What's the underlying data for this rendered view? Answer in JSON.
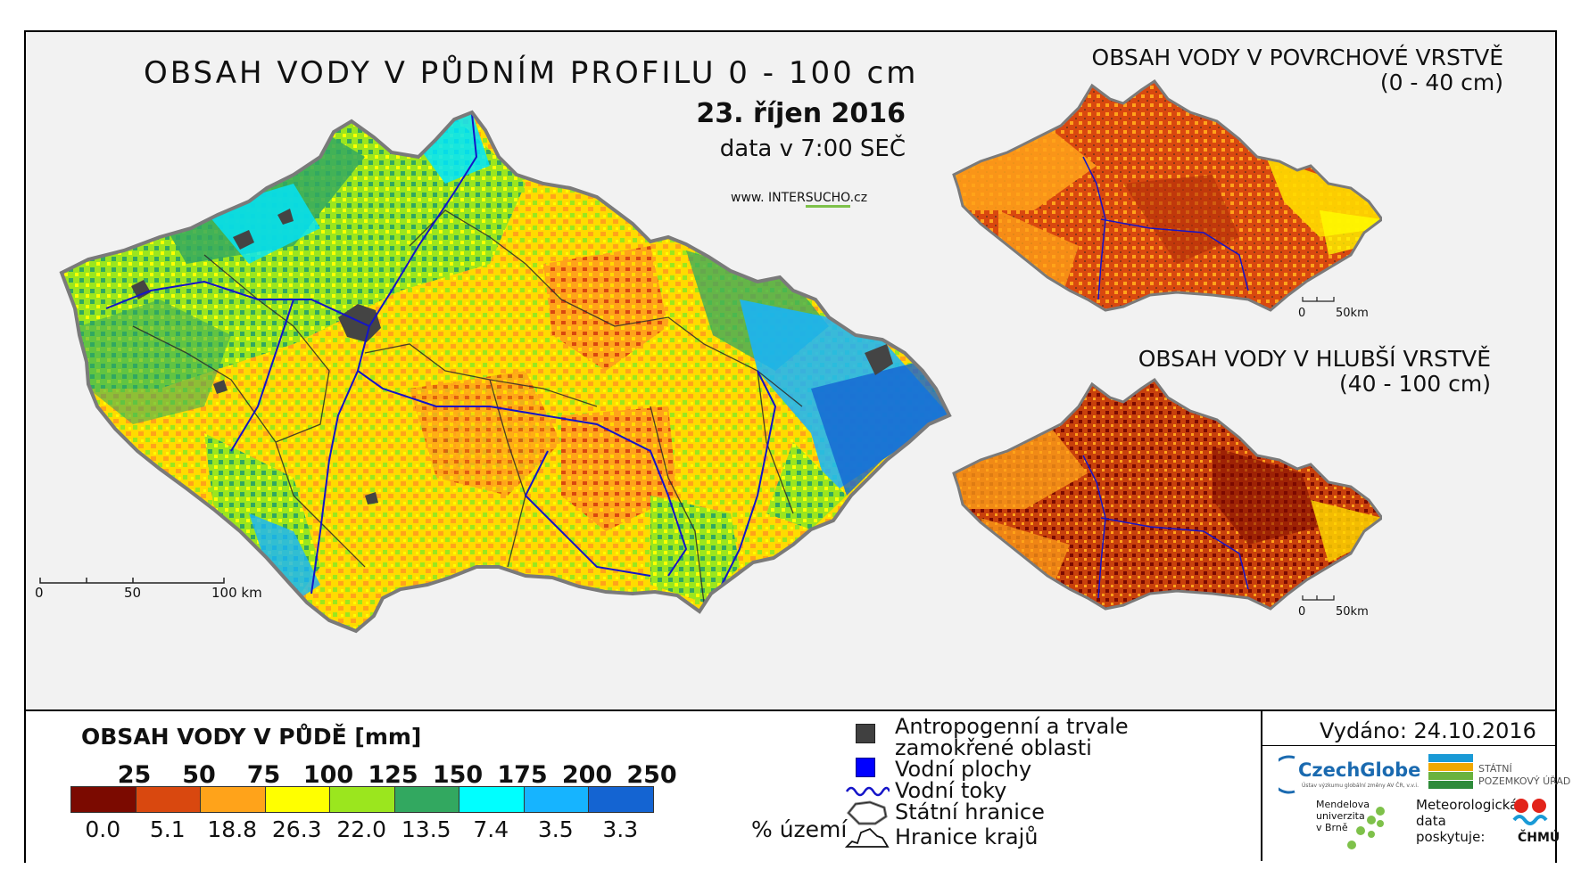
{
  "main_map": {
    "title": "OBSAH VODY V PŮDNÍM PROFILU 0 - 100 cm",
    "date": "23. říjen 2016",
    "time": "data v 7:00 SEČ",
    "url_prefix": "www. INTER",
    "url_highlight": "SUCHO",
    "url_suffix": ".cz",
    "scale": {
      "label_0": "0",
      "label_50": "50",
      "label_100": "100 km"
    }
  },
  "surface_map": {
    "title": "OBSAH VODY V POVRCHOVÉ VRSTVĚ",
    "subtitle": "(0 - 40 cm)",
    "scale": {
      "label_0": "0",
      "label_50": "50km"
    }
  },
  "deep_map": {
    "title": "OBSAH VODY V HLUBŠÍ VRSTVĚ",
    "subtitle": "(40 - 100 cm)",
    "scale": {
      "label_0": "0",
      "label_50": "50km"
    }
  },
  "legend": {
    "title": "OBSAH VODY V PŮDĚ [mm]",
    "class_breaks": [
      "25",
      "50",
      "75",
      "100",
      "125",
      "150",
      "175",
      "200",
      "250"
    ],
    "percent_of_area": [
      "0.0",
      "5.1",
      "18.8",
      "26.3",
      "22.0",
      "13.5",
      "7.4",
      "3.5",
      "3.3"
    ],
    "percent_unit": "% území",
    "colors": [
      "#7b0a00",
      "#d9480f",
      "#ffa31a",
      "#ffff00",
      "#9be61e",
      "#32a860",
      "#00ffff",
      "#16b4ff",
      "#1464d2"
    ],
    "symbols": {
      "anthropogenic_l1": "Antropogenní a trvale",
      "anthropogenic_l2": "zamokřené oblasti",
      "water_areas": "Vodní plochy",
      "rivers": "Vodní toky",
      "state_border": "Státní hranice",
      "region_border": "Hranice krajů"
    },
    "symbol_colors": {
      "anthropogenic": "#404040",
      "water_areas": "#0000ff",
      "rivers": "#1414c8"
    }
  },
  "issued": "Vydáno: 24.10.2016",
  "logos": {
    "czechglobe": "CzechGlobe",
    "czechglobe_sub": "Ústav výzkumu globální změny AV ČR, v.v.i.",
    "spu_l1": "STÁTNÍ",
    "spu_l2": "POZEMKOVÝ ÚŘAD",
    "mendel_l1": "Mendelova",
    "mendel_l2": "univerzita",
    "mendel_l3": "v Brně",
    "meteo_l1": "Meteorologická",
    "meteo_l2": "data",
    "meteo_l3": "poskytuje:",
    "chmu": "ČHMÚ"
  }
}
